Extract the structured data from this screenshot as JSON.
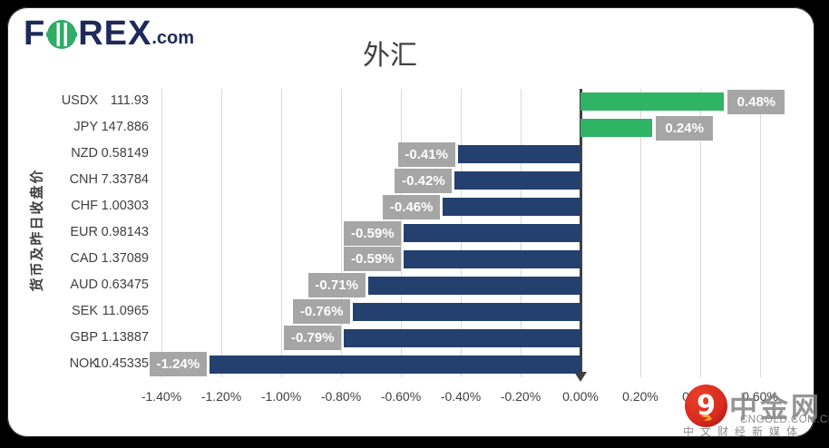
{
  "logo": {
    "part1": "F",
    "part2": "REX",
    "suffix": ".com",
    "colors": {
      "navy": "#1e2a5a",
      "green": "#2fac66"
    }
  },
  "chart_data": {
    "type": "bar",
    "orientation": "horizontal",
    "title": "外汇",
    "ylabel": "货币及昨日收盘价",
    "categories": [
      "USDX",
      "JPY",
      "NZD",
      "CNH",
      "CHF",
      "EUR",
      "CAD",
      "AUD",
      "SEK",
      "GBP",
      "NOK"
    ],
    "closes": [
      "111.93",
      "147.886",
      "0.58149",
      "7.33784",
      "1.00303",
      "0.98143",
      "1.37089",
      "0.63475",
      "11.0965",
      "1.13887",
      "10.45335"
    ],
    "values_pct": [
      0.48,
      0.24,
      -0.41,
      -0.42,
      -0.46,
      -0.59,
      -0.59,
      -0.71,
      -0.76,
      -0.79,
      -1.24
    ],
    "value_labels": [
      "0.48%",
      "0.24%",
      "-0.41%",
      "-0.42%",
      "-0.46%",
      "-0.59%",
      "-0.59%",
      "-0.71%",
      "-0.76%",
      "-0.79%",
      "-1.24%"
    ],
    "x_tick_values": [
      -1.4,
      -1.2,
      -1.0,
      -0.8,
      -0.6,
      -0.4,
      -0.2,
      0.0,
      0.2,
      0.4,
      0.6
    ],
    "x_tick_labels": [
      "-1.40%",
      "-1.20%",
      "-1.00%",
      "-0.80%",
      "-0.60%",
      "-0.40%",
      "-0.20%",
      "0.00%",
      "0.20%",
      "0.40%",
      "0.60%"
    ],
    "xlim": [
      -1.5,
      0.62
    ],
    "grid": true,
    "colors": {
      "positive": "#2eb464",
      "negative": "#24406e",
      "label_box": "#a6a6a6",
      "gridline": "#d9d9d9",
      "axis": "#404040"
    }
  },
  "watermark": {
    "name": "中金网",
    "domain": "CNGOLD.COM.CN",
    "tagline": "中文财经新媒体",
    "logo_colors": {
      "red": "#d92b1f",
      "dark_red": "#b01717",
      "orange": "#f7a823",
      "white": "#ffffff"
    }
  }
}
